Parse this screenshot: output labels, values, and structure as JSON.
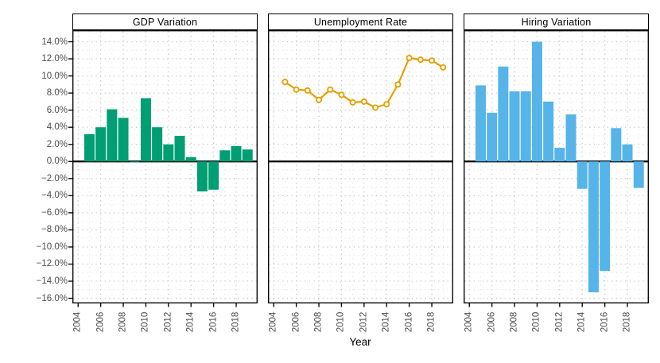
{
  "figure": {
    "xlabel": "Year",
    "background": "#ffffff",
    "panel_border_color": "#0a0a0a",
    "zero_line_color": "#000000",
    "grid_major_color": "#c6c6c6",
    "grid_minor_color": "#dedede",
    "axis_text_color": "#4d4d4d"
  },
  "axes": {
    "y_tick_labels": [
      "14.0%",
      "12.0%",
      "10.0%",
      "8.0%",
      "6.0%",
      "4.0%",
      "2.0%",
      "0.0%",
      "−2.0%",
      "−4.0%",
      "−6.0%",
      "−8.0%",
      "−10.0%",
      "−12.0%",
      "−14.0%",
      "−16.0%"
    ],
    "y_tick_values": [
      14,
      12,
      10,
      8,
      6,
      4,
      2,
      0,
      -2,
      -4,
      -6,
      -8,
      -10,
      -12,
      -14,
      -16
    ],
    "y_minor_values": [
      15,
      13,
      11,
      9,
      7,
      5,
      3,
      1,
      -1,
      -3,
      -5,
      -7,
      -9,
      -11,
      -13,
      -15
    ],
    "x_tick_labels": [
      "2004",
      "2006",
      "2008",
      "2010",
      "2012",
      "2014",
      "2016",
      "2018"
    ],
    "x_tick_values": [
      2004,
      2006,
      2008,
      2010,
      2012,
      2014,
      2016,
      2018
    ],
    "x_minor_values": [
      2005,
      2007,
      2009,
      2011,
      2013,
      2015,
      2017,
      2019
    ],
    "ylim": [
      -16.6,
      15.35
    ],
    "xlim": [
      2003.49,
      2019.9
    ],
    "grid": "dotted",
    "legend": "none"
  },
  "chart_data": [
    {
      "panel": "GDP Variation",
      "type": "bar",
      "color": "#009E73",
      "unit": "%",
      "x": [
        2005,
        2006,
        2007,
        2008,
        2009,
        2010,
        2011,
        2012,
        2013,
        2014,
        2015,
        2016,
        2017,
        2018,
        2019
      ],
      "values": [
        3.2,
        4.0,
        6.1,
        5.1,
        -0.1,
        7.4,
        4.0,
        2.0,
        3.0,
        0.5,
        -3.5,
        -3.3,
        1.3,
        1.8,
        1.4
      ]
    },
    {
      "panel": "Unemployment Rate",
      "type": "line",
      "marker": "open-circle",
      "color": "#E69F00",
      "unit": "%",
      "x": [
        2005,
        2006,
        2007,
        2008,
        2009,
        2010,
        2011,
        2012,
        2013,
        2014,
        2015,
        2016,
        2017,
        2018,
        2019
      ],
      "values": [
        9.3,
        8.4,
        8.3,
        7.2,
        8.4,
        7.8,
        6.9,
        7.0,
        6.3,
        6.7,
        9.0,
        12.1,
        11.9,
        11.8,
        11.0
      ]
    },
    {
      "panel": "Hiring Variation",
      "type": "bar",
      "color": "#56B4E9",
      "unit": "%",
      "x": [
        2005,
        2006,
        2007,
        2008,
        2009,
        2010,
        2011,
        2012,
        2013,
        2014,
        2015,
        2016,
        2017,
        2018,
        2019
      ],
      "values": [
        8.9,
        5.7,
        11.1,
        8.2,
        8.2,
        14.0,
        7.0,
        1.6,
        5.5,
        -3.2,
        -15.3,
        -12.8,
        3.9,
        2.0,
        -3.1
      ]
    }
  ]
}
